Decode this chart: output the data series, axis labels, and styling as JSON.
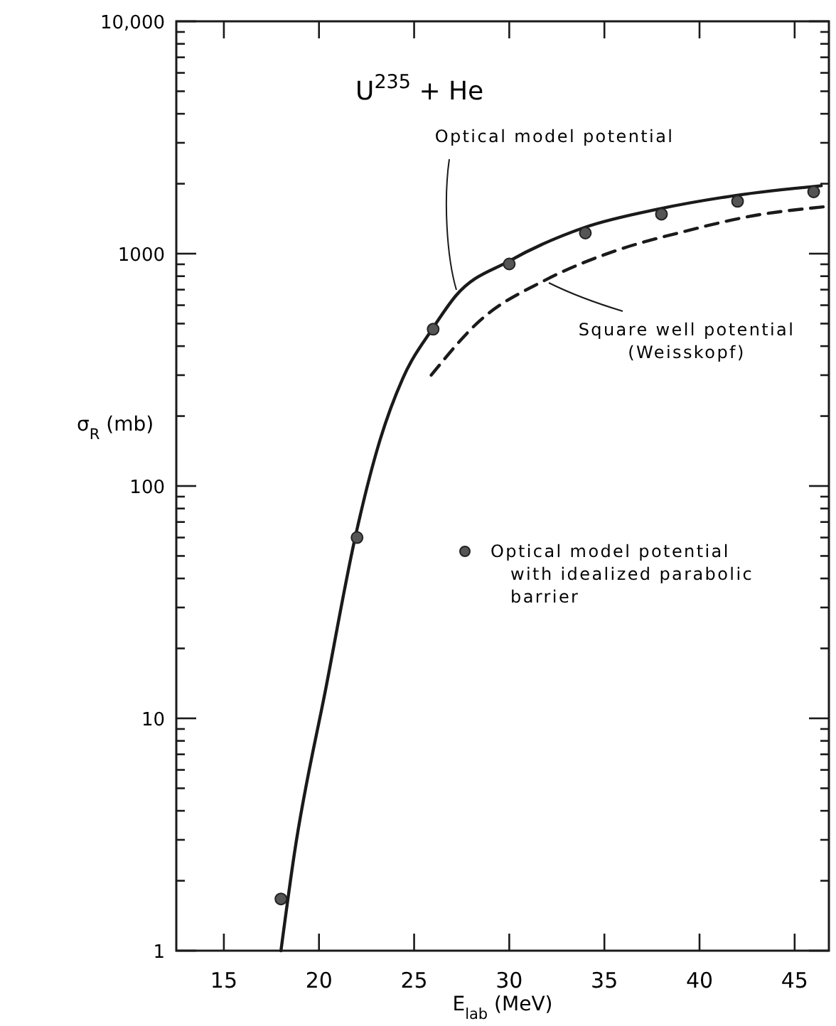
{
  "chart_data": {
    "type": "line",
    "annotations": [
      "U$^{235}$ + He"
    ],
    "xlabel": "E$_{lab}$ (MeV)",
    "ylabel": "σ$_{R}$ (mb)",
    "log": "y",
    "xlim": [
      12.5,
      46.8
    ],
    "xticks": [
      15,
      20,
      25,
      30,
      35,
      40,
      45
    ],
    "ylim": [
      1,
      10000
    ],
    "yticks": [
      1,
      {
        "value": 2,
        "label": null
      },
      {
        "value": 3,
        "label": null
      },
      {
        "value": 4,
        "label": null
      },
      {
        "value": 5,
        "label": null
      },
      {
        "value": 6,
        "label": null
      },
      {
        "value": 7,
        "label": null
      },
      {
        "value": 8,
        "label": null
      },
      {
        "value": 9,
        "label": null
      },
      10,
      {
        "value": 20,
        "label": null
      },
      {
        "value": 30,
        "label": null
      },
      {
        "value": 40,
        "label": null
      },
      {
        "value": 50,
        "label": null
      },
      {
        "value": 60,
        "label": null
      },
      {
        "value": 70,
        "label": null
      },
      {
        "value": 80,
        "label": null
      },
      {
        "value": 90,
        "label": null
      },
      100,
      {
        "value": 200,
        "label": null
      },
      {
        "value": 300,
        "label": null
      },
      {
        "value": 400,
        "label": null
      },
      {
        "value": 500,
        "label": null
      },
      {
        "value": 600,
        "label": null
      },
      {
        "value": 700,
        "label": null
      },
      {
        "value": 800,
        "label": null
      },
      {
        "value": 900,
        "label": null
      },
      1000,
      {
        "value": 2000,
        "label": null
      },
      {
        "value": 3000,
        "label": null
      },
      {
        "value": 4000,
        "label": null
      },
      {
        "value": 5000,
        "label": null
      },
      {
        "value": 6000,
        "label": null
      },
      {
        "value": 7000,
        "label": null
      },
      {
        "value": 8000,
        "label": null
      },
      {
        "value": 9000,
        "label": null
      },
      {
        "value": 10000,
        "label": "10,000"
      }
    ],
    "grid": false,
    "legend": "right",
    "series": [
      {
        "name": "Optical model potential",
        "line_style": "solid",
        "color": "#1a1a1a",
        "x": [
          18.0,
          18.7,
          20.4,
          21.9,
          23.2,
          24.4,
          26.0,
          27.2,
          30.0,
          34.0,
          37.9,
          41.9,
          46.4
        ],
        "values": [
          1,
          2.6,
          14,
          60,
          157,
          290,
          480,
          660,
          930,
          1300,
          1560,
          1780,
          1960
        ]
      },
      {
        "name": "Square well potential (Weisskopf)",
        "line_style": "dashed",
        "color": "#1a1a1a",
        "x": [
          25.9,
          28.4,
          31.9,
          35.6,
          39.1,
          42.9,
          46.5
        ],
        "values": [
          300,
          510,
          770,
          1030,
          1240,
          1460,
          1590
        ]
      },
      {
        "name": "Optical model potential with idealized parabolic barrier",
        "type": "scatter",
        "marker": "circle",
        "color": "#555555",
        "x": [
          18,
          22,
          26,
          30,
          34,
          38,
          42,
          46
        ],
        "values": [
          1.67,
          60,
          473,
          903,
          1227,
          1479,
          1680,
          1845
        ]
      }
    ]
  }
}
